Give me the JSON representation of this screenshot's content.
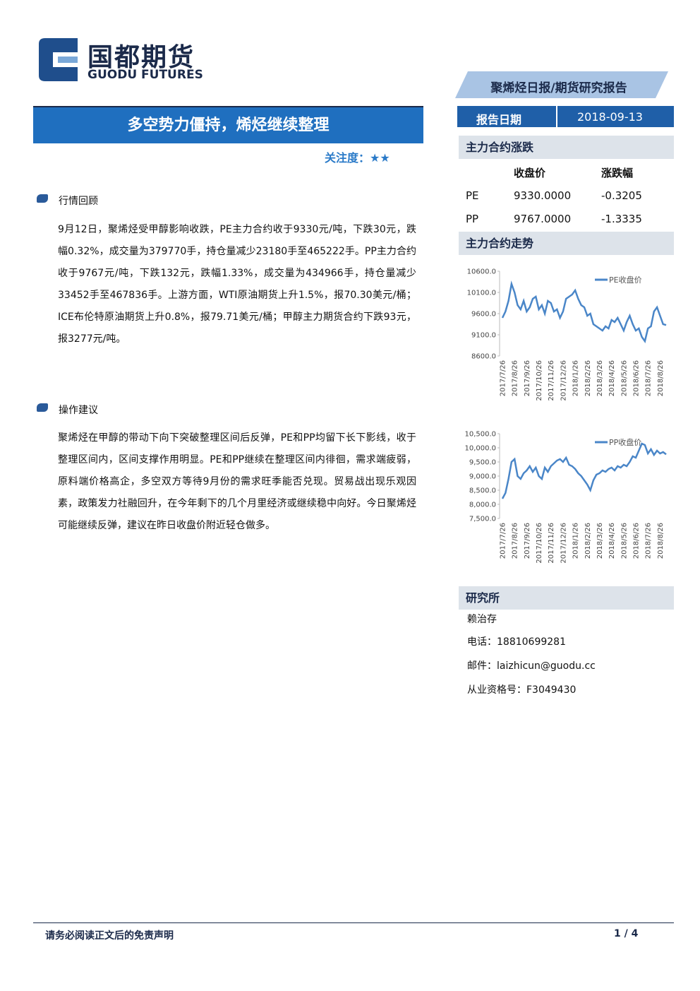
{
  "header": {
    "logo_cn": "国都期货",
    "logo_en": "GUODU FUTURES",
    "report_type": "聚烯烃日报/期货研究报告"
  },
  "title": "多空势力僵持，烯烃继续整理",
  "attention_label": "关注度：",
  "attention_stars": "★★",
  "report_date_label": "报告日期",
  "report_date": "2018-09-13",
  "sections": [
    {
      "heading": "行情回顾",
      "paragraph": "9月12日，聚烯烃受甲醇影响收跌，PE主力合约收于9330元/吨，下跌30元，跌幅0.32%，成交量为379770手，持仓量减少23180手至465222手。PP主力合约收于9767元/吨，下跌132元，跌幅1.33%，成交量为434966手，持仓量减少33452手至467836手。上游方面，WTI原油期货上升1.5%，报70.30美元/桶；ICE布伦特原油期货上升0.8%，报79.71美元/桶；甲醇主力期货合约下跌93元，报3277元/吨。"
    },
    {
      "heading": "操作建议",
      "paragraph": "聚烯烃在甲醇的带动下向下突破整理区间后反弹，PE和PP均留下长下影线，收于整理区间内，区间支撑作用明显。PE和PP继续在整理区间内徘徊，需求端疲弱，原料端价格高企，多空双方等待9月份的需求旺季能否兑现。贸易战出现乐观因素，政策发力社融回升，在今年剩下的几个月里经济或继续稳中向好。今日聚烯烃可能继续反弹，建议在昨日收盘价附近轻仓做多。"
    }
  ],
  "quote": {
    "heading": "主力合约涨跌",
    "columns": [
      "收盘价",
      "涨跌幅"
    ],
    "rows": [
      [
        "PE",
        "9330.0000",
        "-0.3205"
      ],
      [
        "PP",
        "9767.0000",
        "-1.3335"
      ]
    ]
  },
  "trend_heading": "主力合约走势",
  "chart_data": [
    {
      "type": "line",
      "categories": [
        "2017/7/26",
        null,
        null,
        null,
        "2017/8/26",
        null,
        null,
        null,
        "2017/9/26",
        null,
        null,
        null,
        "2017/10/26",
        null,
        null,
        null,
        "2017/11/26",
        null,
        null,
        null,
        "2017/12/26",
        null,
        null,
        null,
        "2018/1/26",
        null,
        null,
        null,
        "2018/2/26",
        null,
        null,
        null,
        "2018/3/26",
        null,
        null,
        null,
        "2018/4/26",
        null,
        null,
        null,
        "2018/5/26",
        null,
        null,
        null,
        "2018/6/26",
        null,
        null,
        null,
        "2018/7/26",
        null,
        null,
        null,
        "2018/8/26",
        null,
        null
      ],
      "series": [
        {
          "name": "PE收盘价",
          "color": "#4a86c8",
          "values": [
            9500,
            9650,
            9900,
            10300,
            10100,
            9800,
            9700,
            9900,
            9650,
            9750,
            9950,
            10000,
            9700,
            9800,
            9600,
            9900,
            9850,
            9650,
            9700,
            9500,
            9650,
            9950,
            10000,
            10050,
            10150,
            9950,
            9800,
            9750,
            9550,
            9600,
            9350,
            9300,
            9250,
            9200,
            9300,
            9250,
            9450,
            9400,
            9500,
            9350,
            9200,
            9400,
            9550,
            9350,
            9200,
            9250,
            9050,
            8950,
            9250,
            9300,
            9650,
            9750,
            9550,
            9350,
            9330
          ]
        }
      ],
      "ylim": [
        8600,
        10600
      ],
      "yticks": [
        {
          "value": 8600,
          "label": "8600.0"
        },
        {
          "value": 9100,
          "label": "9100.0"
        },
        {
          "value": 9600,
          "label": "9600.0"
        },
        {
          "value": 10100,
          "label": "10100.0"
        },
        {
          "value": 10600,
          "label": "10600.0"
        }
      ],
      "legend": "upper right"
    },
    {
      "type": "line",
      "categories": [
        "2017/7/26",
        null,
        null,
        null,
        "2017/8/26",
        null,
        null,
        null,
        "2017/9/26",
        null,
        null,
        null,
        "2017/10/26",
        null,
        null,
        null,
        "2017/11/26",
        null,
        null,
        null,
        "2017/12/26",
        null,
        null,
        null,
        "2018/1/26",
        null,
        null,
        null,
        "2018/2/26",
        null,
        null,
        null,
        "2018/3/26",
        null,
        null,
        null,
        "2018/4/26",
        null,
        null,
        null,
        "2018/5/26",
        null,
        null,
        null,
        "2018/6/26",
        null,
        null,
        null,
        "2018/7/26",
        null,
        null,
        null,
        "2018/8/26",
        null,
        null
      ],
      "series": [
        {
          "name": "PP收盘价",
          "color": "#4a86c8",
          "values": [
            8200,
            8400,
            8900,
            9500,
            9600,
            9000,
            8900,
            9100,
            9200,
            9350,
            9150,
            9300,
            9000,
            8900,
            9300,
            9150,
            9350,
            9450,
            9550,
            9600,
            9500,
            9650,
            9400,
            9350,
            9250,
            9100,
            9000,
            8850,
            8700,
            8500,
            8850,
            9050,
            9100,
            9200,
            9150,
            9250,
            9300,
            9200,
            9350,
            9300,
            9400,
            9350,
            9500,
            9700,
            9650,
            9900,
            10150,
            10100,
            9800,
            9950,
            9750,
            9900,
            9800,
            9850,
            9767
          ]
        }
      ],
      "ylim": [
        7500,
        10500
      ],
      "yticks": [
        {
          "value": 7500,
          "label": "7,500.0"
        },
        {
          "value": 8000,
          "label": "8,000.0"
        },
        {
          "value": 8500,
          "label": "8,500.0"
        },
        {
          "value": 9000,
          "label": "9,000.0"
        },
        {
          "value": 9500,
          "label": "9,500.0"
        },
        {
          "value": 10000,
          "label": "10,000.0"
        },
        {
          "value": 10500,
          "label": "10,500.0"
        }
      ],
      "legend": "upper right"
    }
  ],
  "institute": {
    "heading": "研究所",
    "name": "赖治存",
    "phone": "电话：18810699281",
    "email": "邮件：laizhicun@guodu.cc",
    "license": "从业资格号：F3049430"
  },
  "footer": {
    "disclaimer": "请务必阅读正文后的免责声明",
    "page": "1 / 4"
  }
}
